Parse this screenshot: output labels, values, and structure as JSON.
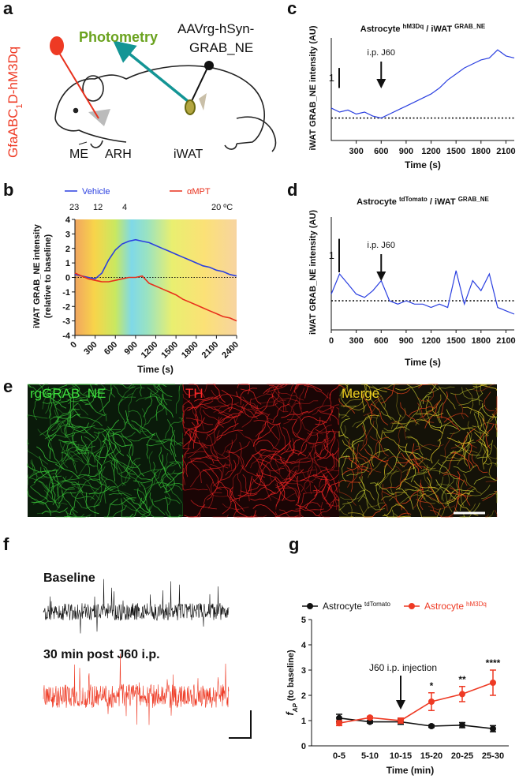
{
  "panel_labels": [
    "a",
    "b",
    "c",
    "d",
    "e",
    "f",
    "g"
  ],
  "panel_a": {
    "photometry": "Photometry",
    "virus": [
      "AAVrg-hSyn-",
      "GRAB_NE"
    ],
    "construct": {
      "text": "GfaABC",
      "sub": "1",
      "rest": "D-hM3Dq"
    },
    "regions": [
      "ME",
      "ARH",
      "iWAT"
    ]
  },
  "panel_e": {
    "channels": [
      "rgGRAB_NE",
      "TH",
      "Merge"
    ]
  },
  "panel_f": {
    "traces": [
      "Baseline",
      "30 min post J60 i.p."
    ]
  },
  "chart_data": [
    {
      "type": "line",
      "x": [
        0,
        100,
        200,
        300,
        400,
        500,
        600,
        700,
        800,
        900,
        1000,
        1100,
        1200,
        1300,
        1400,
        1500,
        1600,
        1700,
        1800,
        1900,
        2000,
        2100,
        2200,
        2300,
        2400
      ],
      "series": [
        {
          "name": "Vehicle",
          "color": "#2a3fe0",
          "values": [
            0.2,
            0.1,
            0,
            -0.1,
            0.3,
            1.2,
            1.9,
            2.3,
            2.5,
            2.6,
            2.5,
            2.4,
            2.2,
            2.0,
            1.8,
            1.6,
            1.4,
            1.2,
            1.0,
            0.8,
            0.7,
            0.5,
            0.4,
            0.2,
            0.1
          ]
        },
        {
          "name": "αMPT",
          "color": "#e8301c",
          "values": [
            0.3,
            0.1,
            -0.1,
            -0.2,
            -0.3,
            -0.3,
            -0.2,
            -0.1,
            0,
            0,
            0.1,
            -0.4,
            -0.6,
            -0.8,
            -1.0,
            -1.2,
            -1.5,
            -1.7,
            -1.9,
            -2.1,
            -2.3,
            -2.5,
            -2.7,
            -2.8,
            -3.0
          ]
        }
      ],
      "xlim": [
        0,
        2400
      ],
      "ylim": [
        -4,
        4
      ],
      "xticks": [
        0,
        300,
        600,
        900,
        1200,
        1500,
        1800,
        2100,
        2400
      ],
      "yticks": [
        -4,
        -3,
        -2,
        -1,
        0,
        1,
        2,
        3,
        4
      ],
      "reference_line": 0,
      "temperature_labels": [
        "23",
        "12",
        "4",
        "20 ºC"
      ],
      "ylabel": [
        "iWAT GRAB_NE intensity",
        "(relative to baseline)"
      ],
      "xlabel": "Time (s)"
    },
    {
      "type": "trace",
      "title": [
        {
          "text": "Astrocyte "
        },
        {
          "text": "hM3Dq",
          "sup": true
        },
        {
          "text": " / iWAT "
        },
        {
          "text": "GRAB_NE",
          "sup": true
        }
      ],
      "x": [
        0,
        100,
        200,
        300,
        400,
        500,
        600,
        700,
        800,
        900,
        1000,
        1100,
        1200,
        1300,
        1400,
        1500,
        1600,
        1700,
        1800,
        1900,
        2000,
        2100,
        2200
      ],
      "series": [
        {
          "color": "#2a3fe0",
          "values": [
            0.5,
            0.3,
            0.4,
            0.2,
            0.3,
            0.1,
            0,
            0.2,
            0.4,
            0.6,
            0.8,
            1.0,
            1.2,
            1.5,
            1.9,
            2.2,
            2.5,
            2.7,
            2.9,
            3.0,
            3.4,
            3.1,
            3.0
          ]
        }
      ],
      "xlim": [
        0,
        2200
      ],
      "ylim": [
        -1,
        4
      ],
      "xticks": [
        300,
        600,
        900,
        1200,
        1500,
        1800,
        2100
      ],
      "reference_line": 0,
      "scale_bar": 1,
      "annotation": {
        "text": "i.p. J60",
        "x": 600
      },
      "ylabel": "iWAT GRAB_NE intensity (AU)",
      "xlabel": "Time (s)"
    },
    {
      "type": "trace",
      "title": [
        {
          "text": "Astrocyte "
        },
        {
          "text": "tdTomato",
          "sup": true
        },
        {
          "text": " / iWAT "
        },
        {
          "text": "GRAB_NE",
          "sup": true
        }
      ],
      "x": [
        0,
        100,
        200,
        300,
        400,
        500,
        600,
        700,
        800,
        900,
        1000,
        1100,
        1200,
        1300,
        1400,
        1500,
        1600,
        1700,
        1800,
        1900,
        2000,
        2100,
        2200
      ],
      "series": [
        {
          "color": "#2a3fe0",
          "values": [
            0.2,
            0.8,
            0.5,
            0.2,
            0.1,
            0.3,
            0.6,
            0,
            -0.1,
            0,
            -0.1,
            -0.1,
            -0.2,
            -0.1,
            -0.2,
            0.9,
            -0.1,
            0.6,
            0.3,
            0.8,
            -0.2,
            -0.3,
            -0.4
          ]
        }
      ],
      "xlim": [
        0,
        2200
      ],
      "ylim": [
        -0.8,
        2.5
      ],
      "xticks": [
        0,
        300,
        600,
        900,
        1200,
        1500,
        1800,
        2100
      ],
      "reference_line": 0,
      "scale_bar": 1,
      "annotation": {
        "text": "i.p. J60",
        "x": 600
      },
      "ylabel": "iWAT GRAB_NE intensity (AU)",
      "xlabel": "Time (s)"
    },
    {
      "type": "errorbar_line",
      "categories": [
        "0-5",
        "5-10",
        "10-15",
        "15-20",
        "20-25",
        "25-30"
      ],
      "series": [
        {
          "name": "Astrocyte",
          "name_sup": "tdTomato",
          "color": "#111111",
          "values": [
            1.1,
            0.95,
            0.95,
            0.78,
            0.82,
            0.68
          ],
          "errors": [
            0.15,
            0.05,
            0.1,
            0.05,
            0.1,
            0.12
          ]
        },
        {
          "name": "Astrocyte",
          "name_sup": "hM3Dq",
          "color": "#ee3a24",
          "values": [
            0.9,
            1.12,
            1.0,
            1.75,
            2.05,
            2.5
          ],
          "errors": [
            0.1,
            0.05,
            0.1,
            0.35,
            0.3,
            0.5
          ]
        }
      ],
      "significance": [
        null,
        null,
        null,
        "*",
        "**",
        "****"
      ],
      "ylim": [
        0,
        5
      ],
      "yticks": [
        0,
        1,
        2,
        3,
        4,
        5
      ],
      "annotation": {
        "text": "J60 i.p. injection",
        "category": 2
      },
      "ylabel": {
        "f": "f",
        "sub": "AP",
        "rest": " (to baseline)"
      },
      "xlabel": "Time (min)"
    }
  ]
}
